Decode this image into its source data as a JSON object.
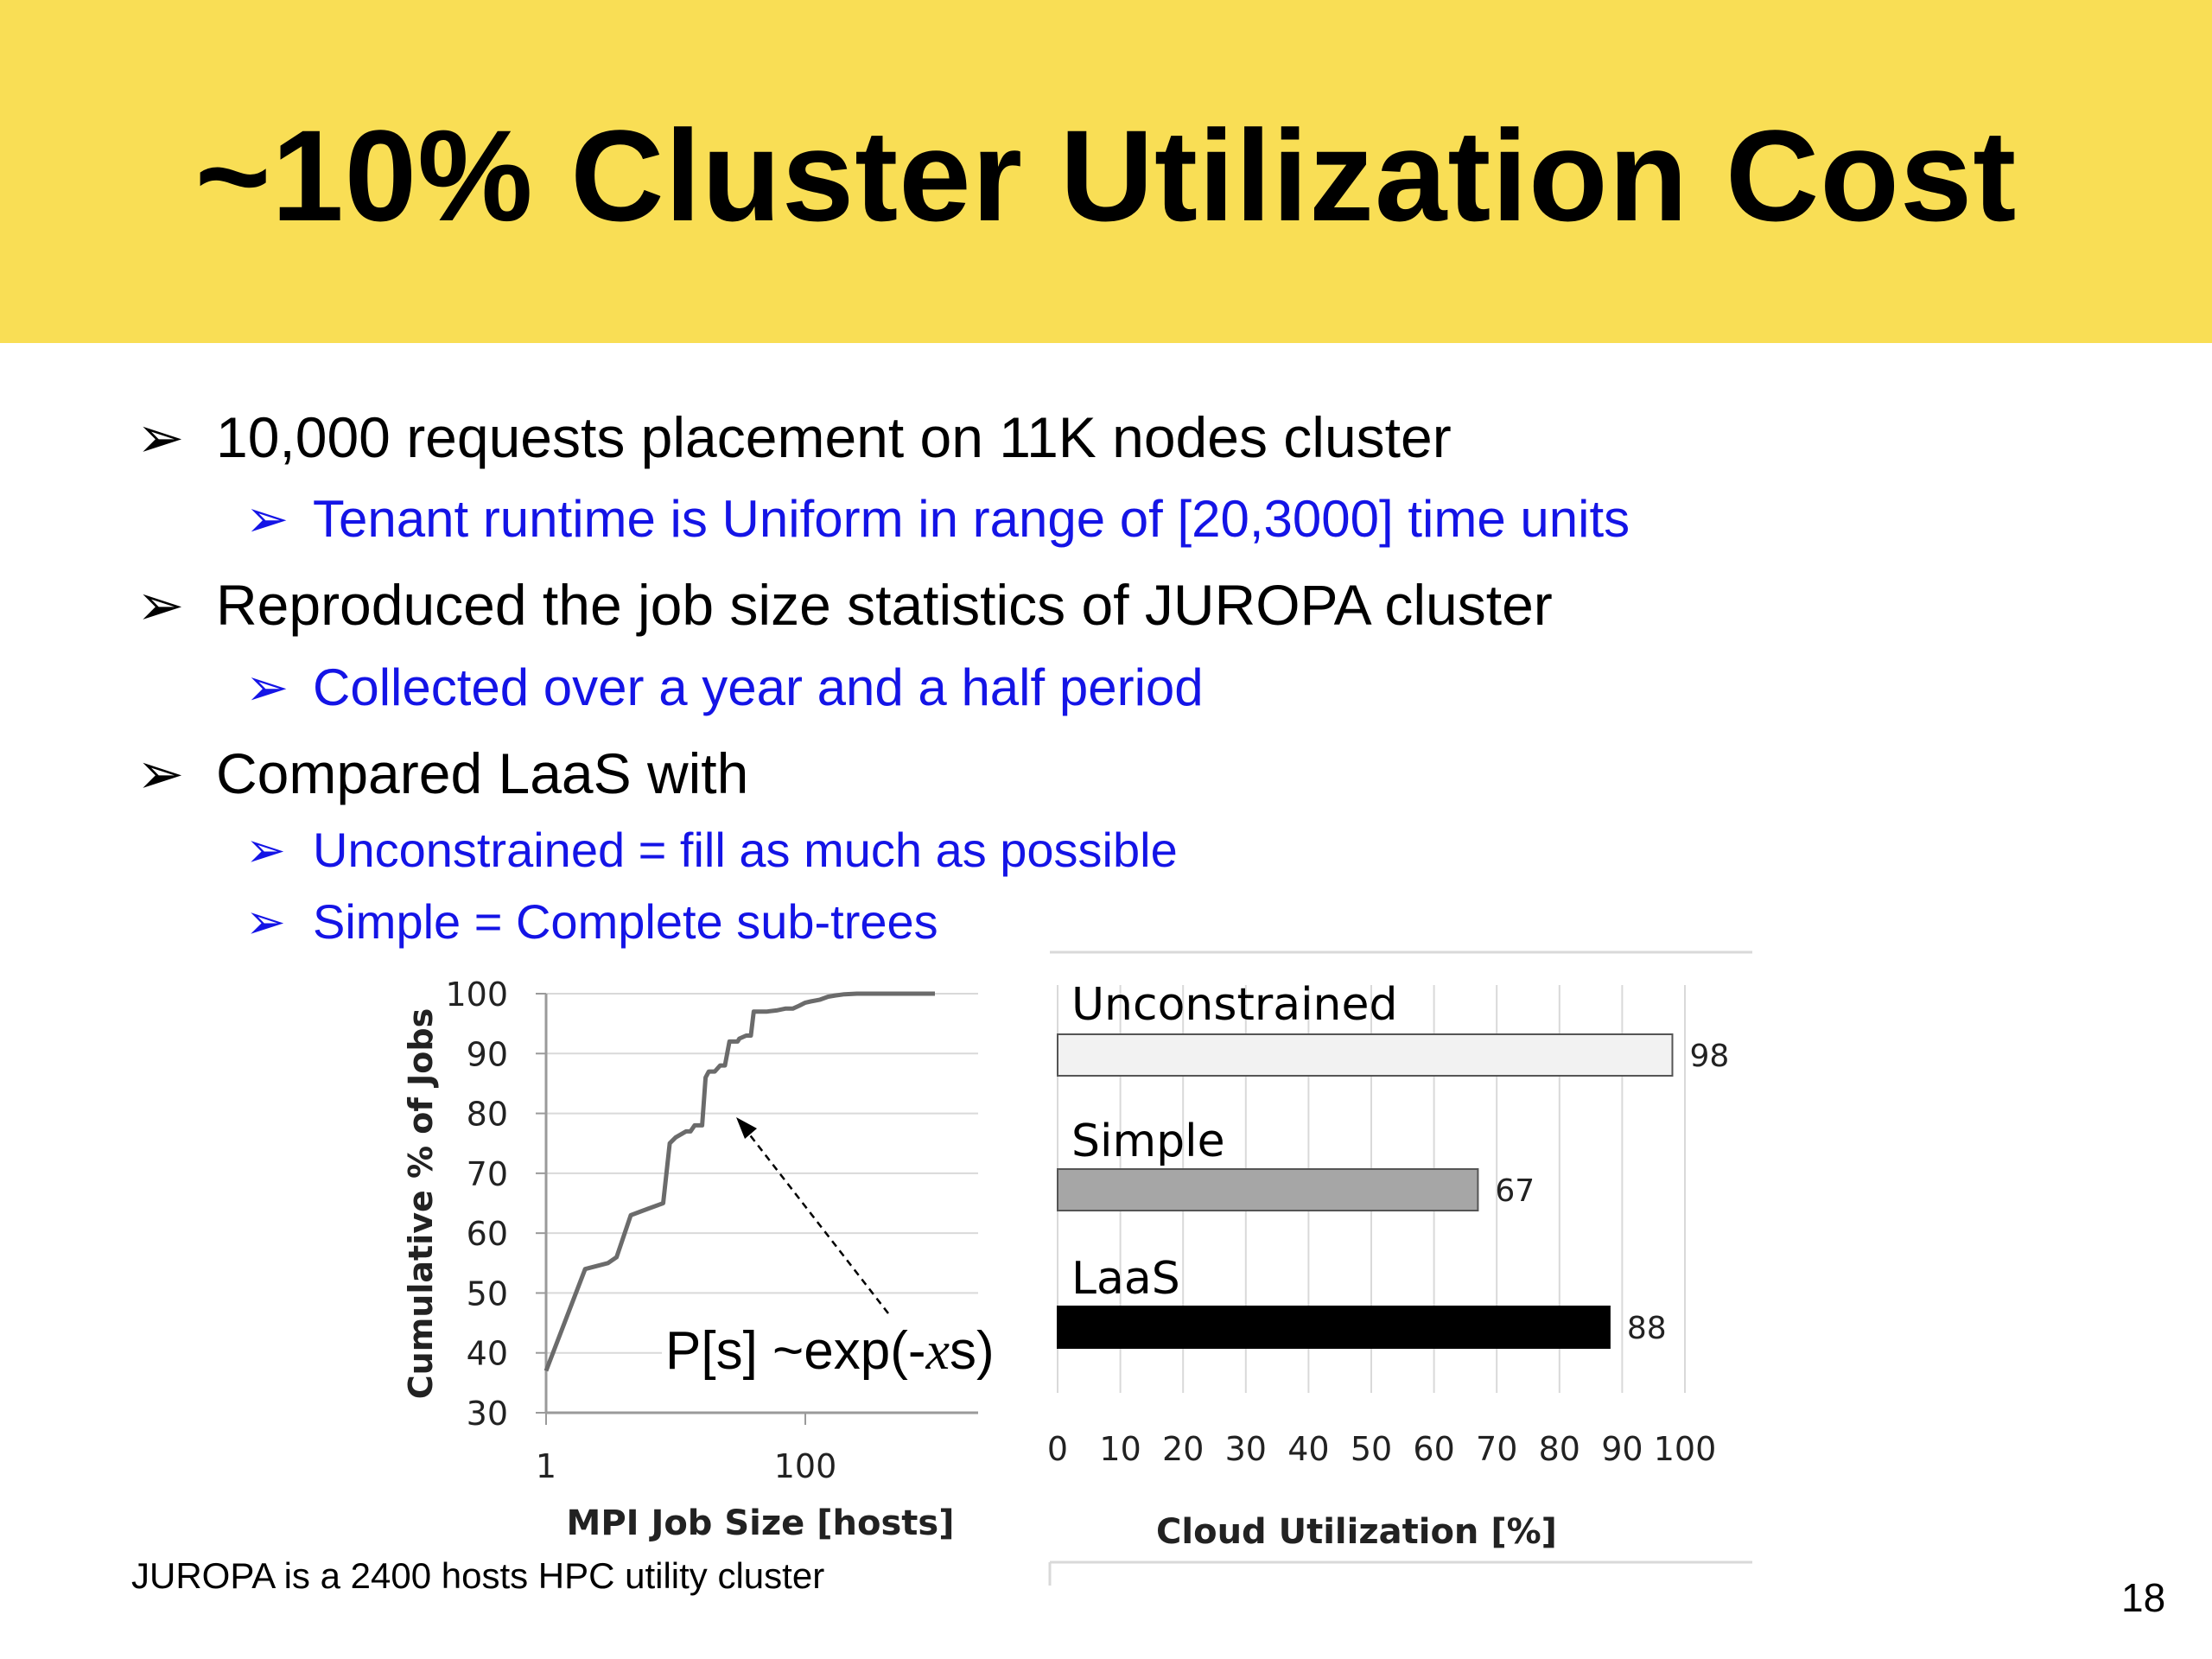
{
  "slide": {
    "title": "~10% Cluster Utilization Cost",
    "page_number": "18",
    "footnote": "JUROPA is a 2400 hosts HPC utility cluster",
    "bullets": [
      "10,000 requests placement on 11K nodes cluster",
      "Tenant runtime is Uniform in range of [20,3000] time units",
      "Reproduced the job size statistics of JUROPA cluster",
      "Collected over a year and a half period",
      "Compared LaaS with",
      "Unconstrained = fill as much as possible",
      "Simple = Complete sub-trees"
    ],
    "bullet_marker": "➢",
    "colors": {
      "title_band": "#f9de55",
      "sub_bullet": "#1414e6"
    }
  },
  "chart_data": [
    {
      "type": "line",
      "xlabel": "MPI Job Size [hosts]",
      "ylabel": "Cumulative % of Jobs",
      "x_scale": "log",
      "x_ticks": [
        "1",
        "100"
      ],
      "y_ticks": [
        "100",
        "90",
        "80",
        "70",
        "60",
        "50",
        "40",
        "30"
      ],
      "ylim": [
        30,
        100
      ],
      "grid": true,
      "annotation": {
        "text": "P[s] ~exp(-",
        "math": "x",
        "suffix": "s)"
      },
      "series": [
        {
          "x": [
            1,
            2,
            3,
            3.5,
            4.5,
            6,
            8,
            9,
            10,
            12,
            13,
            14,
            15,
            16,
            17,
            18,
            20,
            21,
            22,
            24,
            26,
            30,
            31,
            35,
            38,
            40,
            50,
            60,
            70,
            80,
            90,
            100,
            110,
            130,
            150,
            170,
            200,
            250,
            300,
            1000
          ],
          "y": [
            37,
            54,
            55,
            56,
            63,
            64,
            65,
            75,
            76,
            77,
            77,
            78,
            78,
            78,
            86,
            87,
            87,
            87.5,
            88,
            88,
            92,
            92,
            92.5,
            93,
            93,
            97,
            97,
            97.2,
            97.5,
            97.5,
            98,
            98.5,
            98.7,
            99,
            99.5,
            99.7,
            99.9,
            100,
            100,
            100
          ]
        }
      ]
    },
    {
      "type": "bar",
      "orientation": "horizontal",
      "categories": [
        "Unconstrained",
        "Simple",
        "LaaS"
      ],
      "values": [
        98,
        67,
        88
      ],
      "xlabel": "Cloud Utilization [%]",
      "x_ticks": [
        "0",
        "10",
        "20",
        "30",
        "40",
        "50",
        "60",
        "70",
        "80",
        "90",
        "100"
      ],
      "xlim": [
        0,
        100
      ],
      "bar_colors": [
        "#f2f2f2",
        "#a6a6a6",
        "#000000"
      ],
      "grid": true
    }
  ]
}
